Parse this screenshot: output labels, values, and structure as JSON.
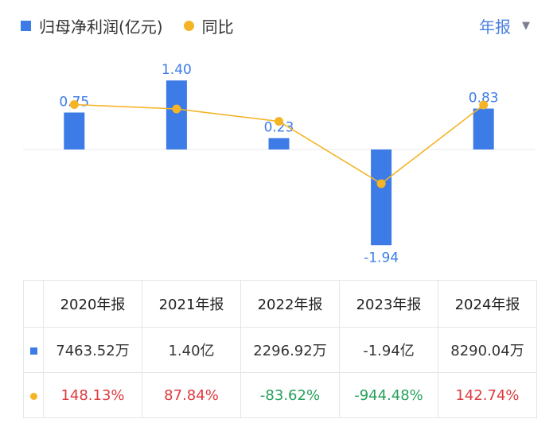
{
  "legend": {
    "bar_label": "归母净利润(亿元)",
    "line_label": "同比"
  },
  "period_selector": {
    "label": "年报",
    "caret": "▼"
  },
  "chart_data": {
    "type": "bar",
    "categories": [
      "2020年报",
      "2021年报",
      "2022年报",
      "2023年报",
      "2024年报"
    ],
    "series": [
      {
        "name": "归母净利润(亿元)",
        "type": "bar",
        "values": [
          0.75,
          1.4,
          0.23,
          -1.94,
          0.83
        ],
        "labels": [
          "0.75",
          "1.40",
          "0.23",
          "-1.94",
          "0.83"
        ],
        "color": "#3d7ce6"
      },
      {
        "name": "同比",
        "type": "line",
        "values": [
          148.13,
          87.84,
          -83.62,
          -944.48,
          142.74
        ],
        "color": "#f5b426"
      }
    ],
    "zero_line": true,
    "grid": false
  },
  "table": {
    "headers": [
      "2020年报",
      "2021年报",
      "2022年报",
      "2023年报",
      "2024年报"
    ],
    "rows": [
      {
        "marker": "bar",
        "cells": [
          "7463.52万",
          "1.40亿",
          "2296.92万",
          "-1.94亿",
          "8290.04万"
        ]
      },
      {
        "marker": "dot",
        "cells": [
          "148.13%",
          "87.84%",
          "-83.62%",
          "-944.48%",
          "142.74%"
        ],
        "colors": [
          "#e0393e",
          "#e0393e",
          "#26a05a",
          "#26a05a",
          "#e0393e"
        ]
      }
    ]
  }
}
